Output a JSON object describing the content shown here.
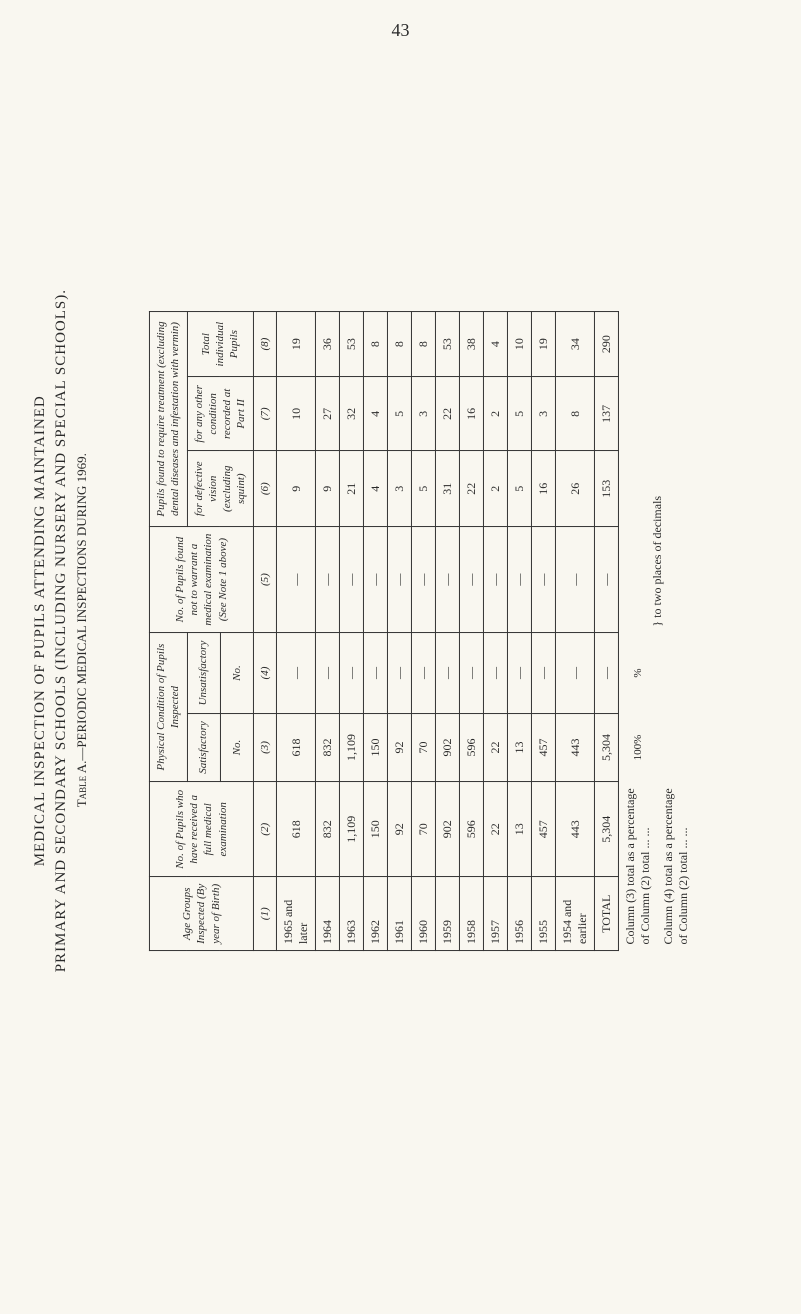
{
  "page_number": "43",
  "title": {
    "line1": "MEDICAL INSPECTION OF PUPILS ATTENDING MAINTAINED",
    "line2": "PRIMARY AND SECONDARY SCHOOLS (INCLUDING NURSERY AND SPECIAL SCHOOLS).",
    "line3": "Table A.—PERIODIC MEDICAL INSPECTIONS DURING 1969."
  },
  "headers": {
    "col1": "Age Groups Inspected (By year of Birth)",
    "col2": "No. of Pupils who have received a full medical examination",
    "col3_group": "Physical Condition of Pupils Inspected",
    "col3": "Satisfactory",
    "col4": "Unsatisfactory",
    "col5": "No. of Pupils found not to warrant a medical examination (See Note 1 above)",
    "col6_group": "Pupils found to require treatment (excluding dental diseases and infestation with vermin)",
    "col6": "for defective vision (excluding squint)",
    "col7": "for any other condition recorded at Part II",
    "col8": "Total individual Pupils",
    "no_label": "No."
  },
  "col_nums": {
    "c1": "(1)",
    "c2": "(2)",
    "c3": "(3)",
    "c4": "(4)",
    "c5": "(5)",
    "c6": "(6)",
    "c7": "(7)",
    "c8": "(8)"
  },
  "rows": [
    {
      "year": "1965 and later",
      "c2": "618",
      "c3": "618",
      "c4": "—",
      "c5": "—",
      "c6": "9",
      "c7": "10",
      "c8": "19"
    },
    {
      "year": "1964",
      "c2": "832",
      "c3": "832",
      "c4": "—",
      "c5": "—",
      "c6": "9",
      "c7": "27",
      "c8": "36"
    },
    {
      "year": "1963",
      "c2": "1,109",
      "c3": "1,109",
      "c4": "—",
      "c5": "—",
      "c6": "21",
      "c7": "32",
      "c8": "53"
    },
    {
      "year": "1962",
      "c2": "150",
      "c3": "150",
      "c4": "—",
      "c5": "—",
      "c6": "4",
      "c7": "4",
      "c8": "8"
    },
    {
      "year": "1961",
      "c2": "92",
      "c3": "92",
      "c4": "—",
      "c5": "—",
      "c6": "3",
      "c7": "5",
      "c8": "8"
    },
    {
      "year": "1960",
      "c2": "70",
      "c3": "70",
      "c4": "—",
      "c5": "—",
      "c6": "5",
      "c7": "3",
      "c8": "8"
    },
    {
      "year": "1959",
      "c2": "902",
      "c3": "902",
      "c4": "—",
      "c5": "—",
      "c6": "31",
      "c7": "22",
      "c8": "53"
    },
    {
      "year": "1958",
      "c2": "596",
      "c3": "596",
      "c4": "—",
      "c5": "—",
      "c6": "22",
      "c7": "16",
      "c8": "38"
    },
    {
      "year": "1957",
      "c2": "22",
      "c3": "22",
      "c4": "—",
      "c5": "—",
      "c6": "2",
      "c7": "2",
      "c8": "4"
    },
    {
      "year": "1956",
      "c2": "13",
      "c3": "13",
      "c4": "—",
      "c5": "—",
      "c6": "5",
      "c7": "5",
      "c8": "10"
    },
    {
      "year": "1955",
      "c2": "457",
      "c3": "457",
      "c4": "—",
      "c5": "—",
      "c6": "16",
      "c7": "3",
      "c8": "19"
    },
    {
      "year": "1954 and earlier",
      "c2": "443",
      "c3": "443",
      "c4": "—",
      "c5": "—",
      "c6": "26",
      "c7": "8",
      "c8": "34"
    }
  ],
  "totals": {
    "label": "TOTAL",
    "c2": "5,304",
    "c3": "5,304",
    "c4": "—",
    "c5": "—",
    "c6": "153",
    "c7": "137",
    "c8": "290"
  },
  "right_annotation": {
    "pct100": "100%",
    "pct_blank": "%",
    "brace_note": "to two places of decimals"
  },
  "footnotes": {
    "f1": "Column (3) total as a percentage of Column (2) total   ...   ...",
    "f2": "Column (4) total as a percentage of Column (2) total   ...   ..."
  }
}
